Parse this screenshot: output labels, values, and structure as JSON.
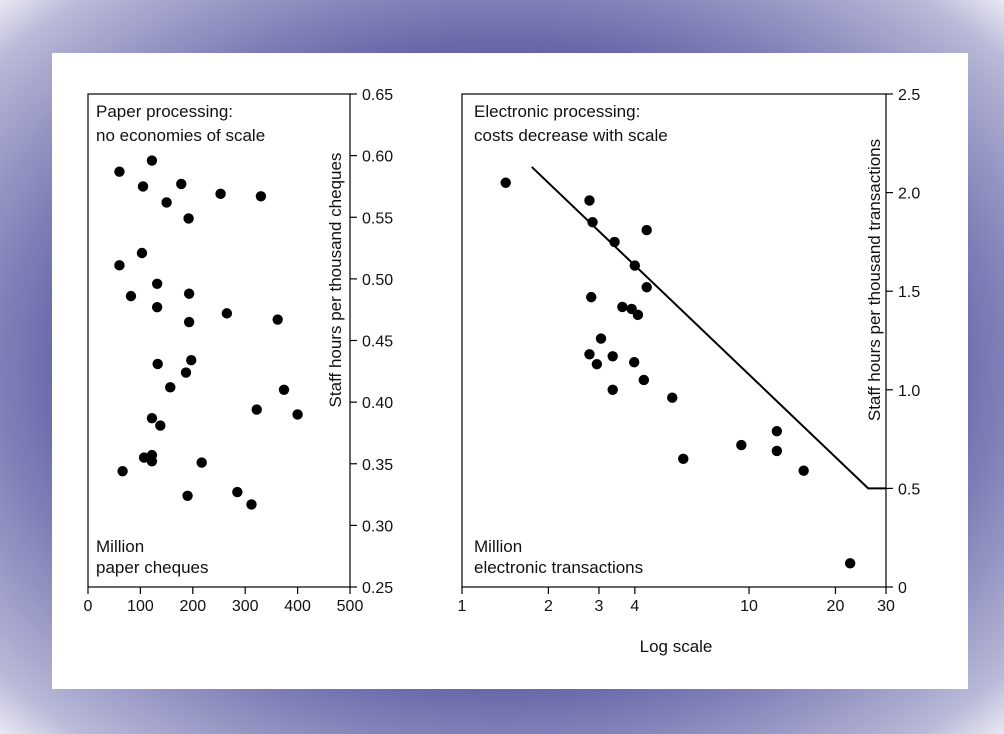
{
  "colors": {
    "frame": "#44449c",
    "panel": "#ffffff",
    "ink": "#000000"
  },
  "chart_data": [
    {
      "type": "scatter",
      "title_lines": [
        "Paper processing:",
        "no economies of scale"
      ],
      "xlabel_lines": [
        "Million",
        "paper cheques"
      ],
      "ylabel": "Staff hours per thousand cheques",
      "xlim": [
        0,
        500
      ],
      "ylim": [
        0.25,
        0.65
      ],
      "xticks": [
        0,
        100,
        200,
        300,
        400,
        500
      ],
      "xtick_labels": [
        "0",
        "100",
        "200",
        "300",
        "400",
        "500"
      ],
      "yticks": [
        0.25,
        0.3,
        0.35,
        0.4,
        0.45,
        0.5,
        0.55,
        0.6,
        0.65
      ],
      "ytick_labels": [
        "0.25",
        "0.30",
        "0.35",
        "0.40",
        "0.45",
        "0.50",
        "0.55",
        "0.60",
        "0.65"
      ],
      "points": [
        [
          122,
          0.596
        ],
        [
          60,
          0.587
        ],
        [
          105,
          0.575
        ],
        [
          178,
          0.577
        ],
        [
          253,
          0.569
        ],
        [
          330,
          0.567
        ],
        [
          150,
          0.562
        ],
        [
          192,
          0.549
        ],
        [
          103,
          0.521
        ],
        [
          60,
          0.511
        ],
        [
          132,
          0.496
        ],
        [
          193,
          0.488
        ],
        [
          82,
          0.486
        ],
        [
          132,
          0.477
        ],
        [
          265,
          0.472
        ],
        [
          362,
          0.467
        ],
        [
          193,
          0.465
        ],
        [
          197,
          0.434
        ],
        [
          133,
          0.431
        ],
        [
          187,
          0.424
        ],
        [
          157,
          0.412
        ],
        [
          374,
          0.41
        ],
        [
          322,
          0.394
        ],
        [
          400,
          0.39
        ],
        [
          122,
          0.387
        ],
        [
          138,
          0.381
        ],
        [
          122,
          0.357
        ],
        [
          107,
          0.355
        ],
        [
          122,
          0.352
        ],
        [
          217,
          0.351
        ],
        [
          66,
          0.344
        ],
        [
          285,
          0.327
        ],
        [
          190,
          0.324
        ],
        [
          312,
          0.317
        ]
      ]
    },
    {
      "type": "scatter",
      "title_lines": [
        "Electronic processing:",
        "costs decrease with scale"
      ],
      "xlabel_lines": [
        "Million",
        "electronic transactions"
      ],
      "xaxis_note": "Log scale",
      "ylabel": "Staff hours per thousand transactions",
      "xscale": "log",
      "xlim": [
        1,
        30
      ],
      "ylim": [
        0,
        2.5
      ],
      "xticks": [
        1,
        2,
        3,
        4,
        10,
        20,
        30
      ],
      "xtick_labels": [
        "1",
        "2",
        "3",
        "4",
        "10",
        "20",
        "30"
      ],
      "yticks": [
        0,
        0.5,
        1.0,
        1.5,
        2.0,
        2.5
      ],
      "ytick_labels": [
        "0",
        "0.5",
        "1.0",
        "1.5",
        "2.0",
        "2.5"
      ],
      "points": [
        [
          1.42,
          2.05
        ],
        [
          2.78,
          1.96
        ],
        [
          2.85,
          1.85
        ],
        [
          3.4,
          1.75
        ],
        [
          4.4,
          1.81
        ],
        [
          4.0,
          1.63
        ],
        [
          4.4,
          1.52
        ],
        [
          2.82,
          1.47
        ],
        [
          3.62,
          1.42
        ],
        [
          3.9,
          1.41
        ],
        [
          4.1,
          1.38
        ],
        [
          3.05,
          1.26
        ],
        [
          2.78,
          1.18
        ],
        [
          3.35,
          1.17
        ],
        [
          2.95,
          1.13
        ],
        [
          3.98,
          1.14
        ],
        [
          4.3,
          1.05
        ],
        [
          3.35,
          1.0
        ],
        [
          5.4,
          0.96
        ],
        [
          9.4,
          0.72
        ],
        [
          12.5,
          0.79
        ],
        [
          12.5,
          0.69
        ],
        [
          5.9,
          0.65
        ],
        [
          15.5,
          0.59
        ],
        [
          22.5,
          0.12
        ]
      ],
      "trend_line": [
        [
          1.75,
          2.13
        ],
        [
          26,
          0.5
        ],
        [
          30,
          0.5
        ]
      ]
    }
  ]
}
